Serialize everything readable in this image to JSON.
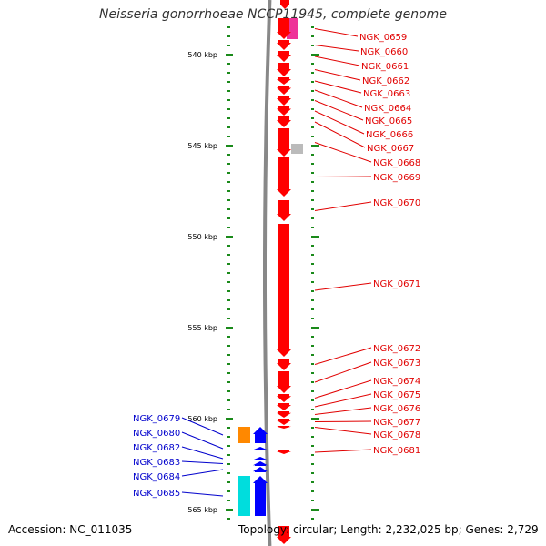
{
  "header": {
    "title": "Neisseria gonorrhoeae NCCP11945, complete genome"
  },
  "footer": {
    "accession": "Accession: NC_011035",
    "info": "Topology: circular; Length: 2,232,025 bp; Genes: 2,729"
  },
  "colors": {
    "forward_strand": "#ff0000",
    "reverse_strand": "#0000ff",
    "label_forward": "#e10000",
    "label_reverse": "#0000cc",
    "tick": "#1a8a1a",
    "backbone": "#888888",
    "pink_feature": "#ee3399",
    "gray_feature": "#bbbbbb",
    "orange_feature": "#ff8800",
    "cyan_feature": "#00dddd"
  },
  "chart_data": {
    "type": "genome-map",
    "unit": "kbp",
    "axis_ticks_kbp": [
      540,
      545,
      550,
      555,
      560,
      565
    ],
    "axis_tick_labels": [
      "540 kbp",
      "545 kbp",
      "550 kbp",
      "555 kbp",
      "560 kbp",
      "565 kbp"
    ],
    "forward_genes": [
      {
        "name": "NGK_0659",
        "start_kbp": 538.0,
        "end_kbp": 539.15
      },
      {
        "name": "NGK_0660",
        "start_kbp": 539.2,
        "end_kbp": 539.75
      },
      {
        "name": "NGK_0661",
        "start_kbp": 539.8,
        "end_kbp": 540.4
      },
      {
        "name": "NGK_0662",
        "start_kbp": 540.45,
        "end_kbp": 541.2
      },
      {
        "name": "NGK_0663",
        "start_kbp": 541.25,
        "end_kbp": 541.65
      },
      {
        "name": "NGK_0664",
        "start_kbp": 541.7,
        "end_kbp": 542.2
      },
      {
        "name": "NGK_0665",
        "start_kbp": 542.25,
        "end_kbp": 542.8
      },
      {
        "name": "NGK_0666",
        "start_kbp": 542.85,
        "end_kbp": 543.35
      },
      {
        "name": "NGK_0667",
        "start_kbp": 543.4,
        "end_kbp": 544.0
      },
      {
        "name": "NGK_0668",
        "start_kbp": 544.05,
        "end_kbp": 545.6
      },
      {
        "name": "NGK_0669",
        "start_kbp": 545.65,
        "end_kbp": 547.8
      },
      {
        "name": "NGK_0670",
        "start_kbp": 548.0,
        "end_kbp": 549.15
      },
      {
        "name": "NGK_0671",
        "start_kbp": 549.3,
        "end_kbp": 556.6
      },
      {
        "name": "NGK_0672",
        "start_kbp": 556.7,
        "end_kbp": 557.35
      },
      {
        "name": "NGK_0673",
        "start_kbp": 557.4,
        "end_kbp": 558.6
      },
      {
        "name": "NGK_0674",
        "start_kbp": 558.65,
        "end_kbp": 559.1
      },
      {
        "name": "NGK_0675",
        "start_kbp": 559.15,
        "end_kbp": 559.55
      },
      {
        "name": "NGK_0676",
        "start_kbp": 559.6,
        "end_kbp": 559.95
      },
      {
        "name": "NGK_0677",
        "start_kbp": 560.0,
        "end_kbp": 560.35
      },
      {
        "name": "NGK_0678",
        "start_kbp": 560.4,
        "end_kbp": 560.55
      },
      {
        "name": "NGK_0681",
        "start_kbp": 561.75,
        "end_kbp": 561.95
      }
    ],
    "forward_label_kbp": [
      539.2,
      540.0,
      540.8,
      541.6,
      542.3,
      543.1,
      543.8,
      544.55,
      545.3,
      546.1,
      546.9,
      548.3,
      552.75,
      556.3,
      557.1,
      558.1,
      558.85,
      559.6,
      560.35,
      561.05,
      561.9
    ],
    "reverse_genes": [
      {
        "name": "NGK_0679",
        "start_kbp": 560.45,
        "end_kbp": 561.35
      },
      {
        "name": "NGK_0680",
        "start_kbp": 561.55,
        "end_kbp": 561.75
      },
      {
        "name": "NGK_0682",
        "start_kbp": 562.1,
        "end_kbp": 562.3
      },
      {
        "name": "NGK_0683",
        "start_kbp": 562.35,
        "end_kbp": 562.6
      },
      {
        "name": "NGK_0684",
        "start_kbp": 562.65,
        "end_kbp": 562.95
      },
      {
        "name": "NGK_0685",
        "start_kbp": 563.15,
        "end_kbp": 565.35
      }
    ],
    "reverse_label_kbp": [
      560.15,
      560.95,
      561.75,
      562.55,
      563.35,
      564.25
    ],
    "other_features": [
      {
        "color": "pink",
        "start_kbp": 538.0,
        "end_kbp": 539.15
      },
      {
        "color": "gray",
        "start_kbp": 544.9,
        "end_kbp": 545.45
      },
      {
        "color": "orange",
        "start_kbp": 560.45,
        "end_kbp": 561.35
      },
      {
        "color": "cyan",
        "start_kbp": 563.15,
        "end_kbp": 565.35
      }
    ]
  }
}
